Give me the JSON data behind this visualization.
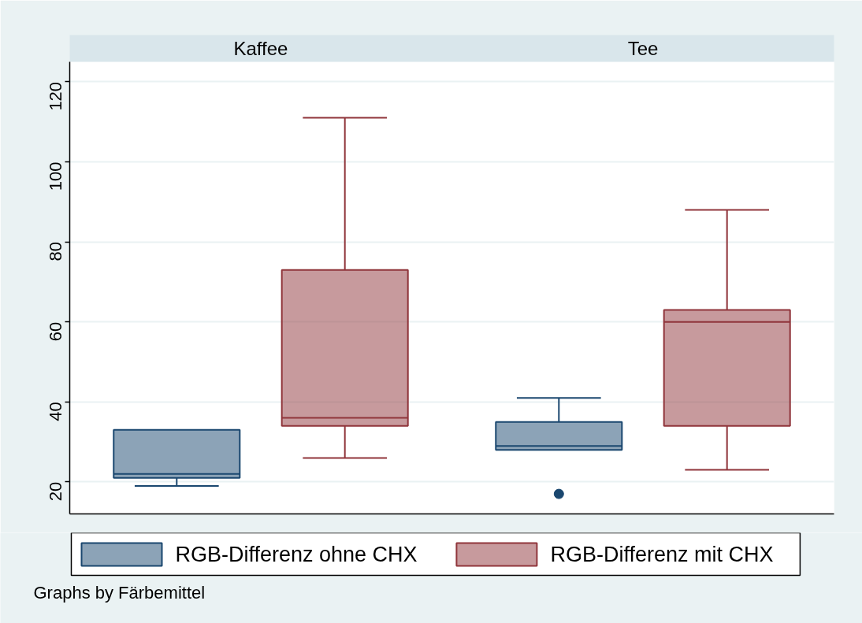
{
  "chart_data": {
    "type": "box",
    "categories": [
      "Kaffee",
      "Tee"
    ],
    "series": [
      {
        "name": "RGB-Differenz ohne CHX",
        "color": "#1a476f",
        "boxes": [
          {
            "low": 19,
            "q1": 21,
            "median": 22,
            "q3": 33,
            "high": 33
          },
          {
            "low": 28,
            "q1": 28,
            "median": 29,
            "q3": 35,
            "high": 41,
            "outliers": [
              17
            ]
          }
        ]
      },
      {
        "name": "RGB-Differenz mit CHX",
        "color": "#90353b",
        "boxes": [
          {
            "low": 26,
            "q1": 34,
            "median": 36,
            "q3": 73,
            "high": 111
          },
          {
            "low": 23,
            "q1": 34,
            "median": 60,
            "q3": 63,
            "high": 88
          }
        ]
      }
    ],
    "ylim": [
      12,
      125
    ],
    "yticks": [
      20,
      40,
      60,
      80,
      100,
      120
    ],
    "grid": "y",
    "legend": "bottom",
    "annotations": [
      "Graphs by Färbemittel"
    ]
  }
}
